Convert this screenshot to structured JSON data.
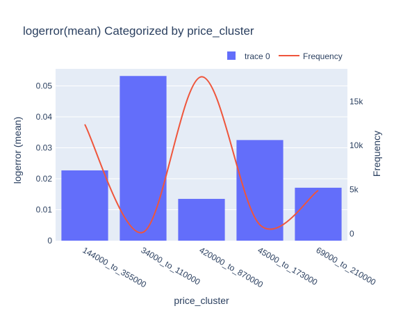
{
  "chart_data": {
    "type": "bar",
    "title": "logerror(mean) Categorized by price_cluster",
    "xlabel": "price_cluster",
    "ylabel": "logerror (mean)",
    "y2label": "Frequency",
    "categories": [
      "144000_to_355000",
      "34000_to_110000",
      "420000_to_870000",
      "45000_to_173000",
      "69000_to_210000"
    ],
    "ylim": [
      0,
      0.0555
    ],
    "y_ticks": [
      0,
      0.01,
      0.02,
      0.03,
      0.04,
      0.05
    ],
    "y_tick_labels": [
      "0",
      "0.01",
      "0.02",
      "0.03",
      "0.04",
      "0.05"
    ],
    "y2lim": [
      -800,
      18700
    ],
    "y2_ticks": [
      0,
      5000,
      10000,
      15000
    ],
    "y2_tick_labels": [
      "0",
      "5k",
      "10k",
      "15k"
    ],
    "series": [
      {
        "name": "trace 0",
        "type": "bar",
        "axis": "left",
        "color": "#636efa",
        "values": [
          0.0227,
          0.0532,
          0.0135,
          0.0325,
          0.0171
        ]
      },
      {
        "name": "Frequency",
        "type": "line",
        "axis": "right",
        "color": "#ef553b",
        "line_shape": "spline",
        "values": [
          12400,
          150,
          17800,
          1000,
          4900
        ]
      }
    ],
    "grid": true,
    "legend_position": "top-right",
    "plot_background": "#e5ecf6"
  }
}
